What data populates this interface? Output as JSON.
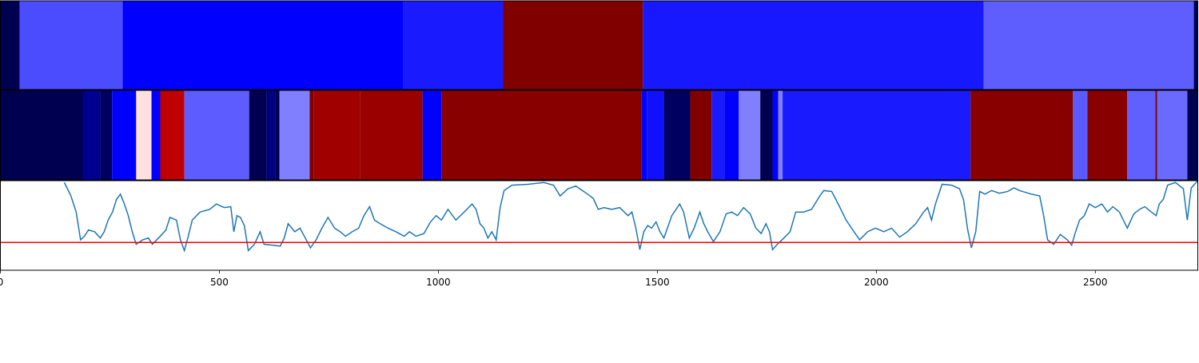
{
  "chart_data": [
    {
      "type": "strip",
      "xlim": [
        0,
        2734
      ],
      "edges": [
        0,
        44,
        279,
        920,
        1148,
        1467,
        2245,
        2725,
        2734
      ],
      "colors": [
        "#000050",
        "#4c4cff",
        "#0000ff",
        "#1a1aff",
        "#800000",
        "#1818ff",
        "#5e5eff",
        "#000050"
      ]
    },
    {
      "type": "strip",
      "xlim": [
        0,
        2734
      ],
      "edges": [
        0,
        188,
        228,
        255,
        310,
        345,
        365,
        420,
        568,
        608,
        628,
        637,
        706,
        715,
        821,
        964,
        1007,
        1464,
        1476,
        1515,
        1575,
        1624,
        1653,
        1686,
        1735,
        1763,
        1776,
        1786,
        2215,
        2449,
        2482,
        2573,
        2637,
        2641,
        2710,
        2734
      ],
      "colors": [
        "#000050",
        "#000090",
        "#000060",
        "#0000ff",
        "#ffe0e0",
        "#0000ff",
        "#c00000",
        "#5c5cff",
        "#000050",
        "#000080",
        "#000050",
        "#8080ff",
        "#800000",
        "#a00000",
        "#9a0000",
        "#0000ff",
        "#880000",
        "#0000ff",
        "#1010ff",
        "#000060",
        "#800000",
        "#1a1aff",
        "#0000ff",
        "#8080ff",
        "#000050",
        "#0000ff",
        "#8080ff",
        "#1a1aff",
        "#880000",
        "#5a5aff",
        "#880000",
        "#6060ff",
        "#800000",
        "#6a6aff",
        "#000050"
      ]
    },
    {
      "type": "line",
      "xlim": [
        0,
        2734
      ],
      "ylim": [
        0,
        1
      ],
      "xticks": [
        0,
        500,
        1000,
        1500,
        2000,
        2500
      ],
      "color": "#1f77b4",
      "threshold": {
        "value": 0.31,
        "color": "#ff0000"
      },
      "x": [
        146,
        161,
        173,
        183,
        192,
        201,
        215,
        228,
        237,
        246,
        256,
        265,
        274,
        283,
        292,
        301,
        310,
        325,
        338,
        347,
        365,
        378,
        387,
        402,
        411,
        420,
        429,
        438,
        456,
        478,
        493,
        511,
        526,
        533,
        540,
        548,
        557,
        566,
        580,
        593,
        602,
        621,
        639,
        648,
        657,
        672,
        684,
        694,
        708,
        721,
        734,
        748,
        763,
        776,
        788,
        803,
        818,
        830,
        843,
        854,
        867,
        885,
        903,
        922,
        934,
        949,
        967,
        982,
        995,
        1007,
        1022,
        1040,
        1059,
        1077,
        1086,
        1095,
        1104,
        1113,
        1122,
        1132,
        1141,
        1150,
        1168,
        1205,
        1241,
        1263,
        1278,
        1296,
        1314,
        1329,
        1341,
        1354,
        1365,
        1378,
        1396,
        1414,
        1433,
        1442,
        1451,
        1460,
        1469,
        1478,
        1487,
        1497,
        1506,
        1515,
        1533,
        1551,
        1560,
        1573,
        1584,
        1597,
        1606,
        1615,
        1628,
        1643,
        1657,
        1670,
        1683,
        1697,
        1712,
        1725,
        1737,
        1748,
        1756,
        1763,
        1774,
        1789,
        1803,
        1816,
        1834,
        1852,
        1871,
        1880,
        1898,
        1913,
        1931,
        1949,
        1962,
        1980,
        1998,
        2017,
        2035,
        2053,
        2071,
        2090,
        2108,
        2117,
        2126,
        2135,
        2150,
        2172,
        2190,
        2199,
        2208,
        2217,
        2227,
        2236,
        2248,
        2263,
        2281,
        2300,
        2314,
        2327,
        2354,
        2373,
        2382,
        2391,
        2405,
        2420,
        2436,
        2446,
        2455,
        2464,
        2475,
        2486,
        2500,
        2515,
        2528,
        2540,
        2555,
        2573,
        2588,
        2601,
        2613,
        2628,
        2639,
        2646,
        2655,
        2665,
        2683,
        2701,
        2710,
        2719,
        2734
      ],
      "values": [
        0.98,
        0.83,
        0.65,
        0.34,
        0.38,
        0.45,
        0.43,
        0.36,
        0.43,
        0.56,
        0.65,
        0.79,
        0.85,
        0.74,
        0.61,
        0.43,
        0.29,
        0.34,
        0.36,
        0.29,
        0.38,
        0.45,
        0.59,
        0.56,
        0.34,
        0.22,
        0.38,
        0.56,
        0.65,
        0.68,
        0.74,
        0.7,
        0.71,
        0.43,
        0.61,
        0.59,
        0.5,
        0.22,
        0.29,
        0.43,
        0.29,
        0.28,
        0.27,
        0.36,
        0.52,
        0.43,
        0.47,
        0.38,
        0.25,
        0.34,
        0.47,
        0.59,
        0.47,
        0.43,
        0.38,
        0.43,
        0.47,
        0.61,
        0.71,
        0.56,
        0.52,
        0.47,
        0.43,
        0.38,
        0.43,
        0.38,
        0.41,
        0.54,
        0.61,
        0.56,
        0.68,
        0.56,
        0.65,
        0.74,
        0.68,
        0.52,
        0.47,
        0.36,
        0.43,
        0.34,
        0.7,
        0.89,
        0.95,
        0.96,
        0.98,
        0.95,
        0.83,
        0.91,
        0.94,
        0.89,
        0.85,
        0.8,
        0.68,
        0.7,
        0.68,
        0.7,
        0.61,
        0.65,
        0.47,
        0.23,
        0.43,
        0.5,
        0.47,
        0.54,
        0.43,
        0.36,
        0.61,
        0.74,
        0.65,
        0.36,
        0.47,
        0.65,
        0.52,
        0.43,
        0.32,
        0.43,
        0.63,
        0.65,
        0.61,
        0.7,
        0.63,
        0.47,
        0.41,
        0.52,
        0.43,
        0.23,
        0.29,
        0.36,
        0.43,
        0.65,
        0.65,
        0.68,
        0.83,
        0.89,
        0.88,
        0.74,
        0.56,
        0.43,
        0.34,
        0.43,
        0.47,
        0.43,
        0.47,
        0.37,
        0.43,
        0.52,
        0.65,
        0.7,
        0.56,
        0.74,
        0.96,
        0.95,
        0.91,
        0.79,
        0.47,
        0.25,
        0.43,
        0.88,
        0.85,
        0.89,
        0.86,
        0.88,
        0.92,
        0.89,
        0.85,
        0.83,
        0.61,
        0.34,
        0.29,
        0.4,
        0.34,
        0.28,
        0.43,
        0.56,
        0.61,
        0.74,
        0.7,
        0.74,
        0.65,
        0.71,
        0.65,
        0.47,
        0.63,
        0.68,
        0.71,
        0.65,
        0.61,
        0.74,
        0.79,
        0.95,
        0.98,
        0.91,
        0.56,
        0.92,
        1.0
      ]
    }
  ]
}
